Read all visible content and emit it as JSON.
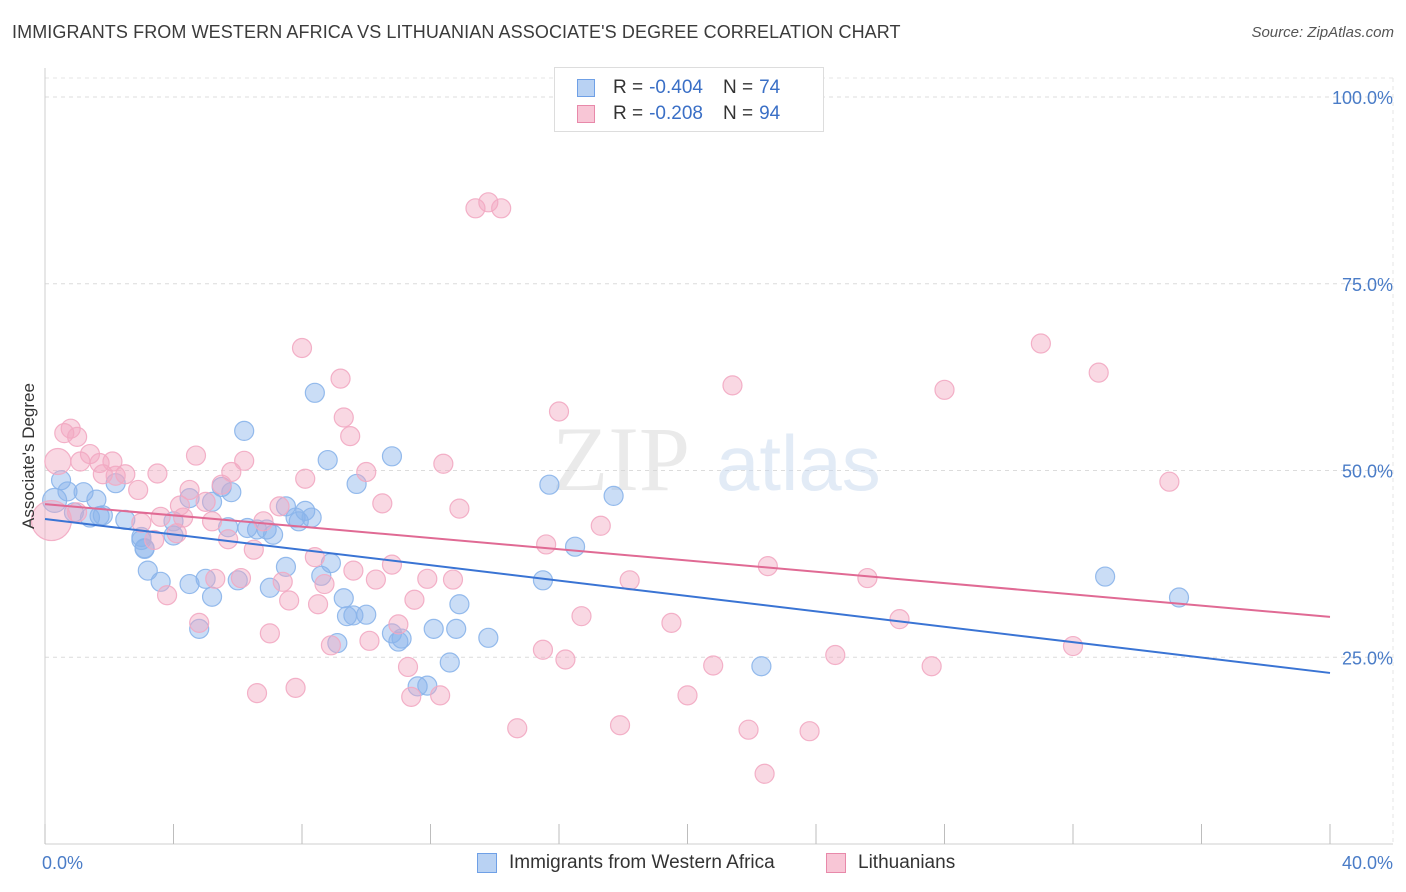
{
  "title": "IMMIGRANTS FROM WESTERN AFRICA VS LITHUANIAN ASSOCIATE'S DEGREE CORRELATION CHART",
  "source": "Source: ZipAtlas.com",
  "watermark": {
    "zip": "ZIP",
    "atlas": "atlas"
  },
  "legend": {
    "r_label": "R =",
    "n_label": "N =",
    "rows": [
      {
        "r": "-0.404",
        "n": "74",
        "color": "#6fa0e6",
        "fill": "#b9d2f3"
      },
      {
        "r": "-0.208",
        "n": "94",
        "color": "#e889aa",
        "fill": "#f8c6d6"
      }
    ]
  },
  "bottom_legend": {
    "items": [
      {
        "label": "Immigrants from Western Africa",
        "color": "#6fa0e6",
        "fill": "#b9d2f3"
      },
      {
        "label": "Lithuanians",
        "color": "#e889aa",
        "fill": "#f8c6d6"
      }
    ]
  },
  "chart_data": {
    "type": "scatter",
    "title": "IMMIGRANTS FROM WESTERN AFRICA VS LITHUANIAN ASSOCIATE'S DEGREE CORRELATION CHART",
    "xlabel": "",
    "ylabel": "Associate's Degree",
    "xlim": [
      0,
      40
    ],
    "ylim": [
      0,
      105
    ],
    "x_tick_labels": [
      "0.0%",
      "40.0%"
    ],
    "y_ticks": [
      25,
      50,
      75,
      100
    ],
    "y_tick_labels": [
      "25.0%",
      "50.0%",
      "75.0%",
      "100.0%"
    ],
    "grid": true,
    "legend_position": "top-center",
    "series": [
      {
        "name": "Immigrants from Western Africa",
        "color": "#3a74d4",
        "point_color": "#8ab4ea",
        "trend": {
          "x": [
            0,
            40
          ],
          "y": [
            43.5,
            22.9
          ]
        },
        "points": [
          [
            0.3,
            46
          ],
          [
            0.5,
            48.7
          ],
          [
            0.7,
            47.2
          ],
          [
            0.9,
            44.4
          ],
          [
            1.2,
            47.1
          ],
          [
            1.4,
            43.7
          ],
          [
            1.6,
            46.1
          ],
          [
            1.7,
            43.9
          ],
          [
            1.8,
            44
          ],
          [
            2.2,
            48.3
          ],
          [
            2.5,
            43.4
          ],
          [
            3.0,
            40.7
          ],
          [
            3.0,
            41.1
          ],
          [
            3.1,
            39.6
          ],
          [
            3.1,
            39.5
          ],
          [
            3.2,
            36.6
          ],
          [
            3.6,
            35.1
          ],
          [
            4.0,
            41.3
          ],
          [
            4.0,
            43.2
          ],
          [
            4.5,
            34.8
          ],
          [
            4.5,
            46.3
          ],
          [
            4.8,
            28.8
          ],
          [
            5.0,
            35.5
          ],
          [
            5.2,
            33.1
          ],
          [
            5.2,
            45.8
          ],
          [
            5.5,
            47.8
          ],
          [
            5.7,
            42.4
          ],
          [
            5.8,
            47.1
          ],
          [
            6.0,
            35.3
          ],
          [
            6.2,
            55.3
          ],
          [
            6.3,
            42.3
          ],
          [
            6.6,
            42.1
          ],
          [
            6.9,
            42.1
          ],
          [
            7.0,
            34.3
          ],
          [
            7.1,
            41.4
          ],
          [
            7.5,
            45.2
          ],
          [
            7.5,
            37.1
          ],
          [
            7.8,
            43.7
          ],
          [
            7.9,
            43.2
          ],
          [
            8.1,
            44.6
          ],
          [
            8.3,
            43.7
          ],
          [
            8.4,
            60.4
          ],
          [
            8.6,
            35.9
          ],
          [
            8.8,
            51.4
          ],
          [
            8.9,
            37.6
          ],
          [
            9.1,
            26.9
          ],
          [
            9.3,
            32.9
          ],
          [
            9.4,
            30.5
          ],
          [
            9.6,
            30.6
          ],
          [
            9.7,
            48.2
          ],
          [
            10.0,
            30.7
          ],
          [
            10.8,
            51.9
          ],
          [
            10.8,
            28.2
          ],
          [
            11.0,
            27.1
          ],
          [
            11.1,
            27.5
          ],
          [
            11.6,
            21.1
          ],
          [
            11.9,
            21.2
          ],
          [
            12.1,
            28.8
          ],
          [
            12.6,
            24.3
          ],
          [
            12.8,
            28.8
          ],
          [
            12.9,
            32.1
          ],
          [
            13.8,
            27.6
          ],
          [
            15.5,
            35.3
          ],
          [
            15.7,
            48.1
          ],
          [
            16.5,
            39.8
          ],
          [
            17.7,
            46.6
          ],
          [
            22.3,
            23.8
          ],
          [
            33.0,
            35.8
          ],
          [
            35.3,
            33.0
          ]
        ]
      },
      {
        "name": "Lithuanians",
        "color": "#e06a94",
        "point_color": "#f2a9c2",
        "trend": {
          "x": [
            0,
            40
          ],
          "y": [
            45.5,
            30.4
          ]
        },
        "points": [
          [
            0.2,
            43.3
          ],
          [
            0.4,
            51.2
          ],
          [
            0.6,
            55
          ],
          [
            0.8,
            55.6
          ],
          [
            1.0,
            54.5
          ],
          [
            1.1,
            51.2
          ],
          [
            1.4,
            52.2
          ],
          [
            1.7,
            51
          ],
          [
            1.8,
            49.5
          ],
          [
            2.1,
            51.2
          ],
          [
            2.2,
            49.3
          ],
          [
            2.5,
            49.5
          ],
          [
            2.9,
            47.4
          ],
          [
            3.0,
            43
          ],
          [
            3.4,
            40.7
          ],
          [
            3.5,
            49.6
          ],
          [
            3.6,
            43.8
          ],
          [
            3.8,
            33.3
          ],
          [
            4.1,
            41.6
          ],
          [
            4.2,
            45.3
          ],
          [
            4.3,
            43.7
          ],
          [
            4.5,
            47.4
          ],
          [
            4.7,
            52
          ],
          [
            4.8,
            29.6
          ],
          [
            5.0,
            45.8
          ],
          [
            5.2,
            43.2
          ],
          [
            5.3,
            35.5
          ],
          [
            5.5,
            48.1
          ],
          [
            5.7,
            40.8
          ],
          [
            5.8,
            49.8
          ],
          [
            6.1,
            35.6
          ],
          [
            6.2,
            51.3
          ],
          [
            6.5,
            39.4
          ],
          [
            6.6,
            20.2
          ],
          [
            6.8,
            43.2
          ],
          [
            7.0,
            28.2
          ],
          [
            7.3,
            45.2
          ],
          [
            7.4,
            35.1
          ],
          [
            7.6,
            32.6
          ],
          [
            7.8,
            20.9
          ],
          [
            8.0,
            66.4
          ],
          [
            8.1,
            48.9
          ],
          [
            8.4,
            38.4
          ],
          [
            8.5,
            32.1
          ],
          [
            8.7,
            34.8
          ],
          [
            8.9,
            26.6
          ],
          [
            9.2,
            62.3
          ],
          [
            9.3,
            57.1
          ],
          [
            9.5,
            54.6
          ],
          [
            9.6,
            36.6
          ],
          [
            10.0,
            49.8
          ],
          [
            10.1,
            27.2
          ],
          [
            10.3,
            35.4
          ],
          [
            10.5,
            45.6
          ],
          [
            10.8,
            37.4
          ],
          [
            11.0,
            29.4
          ],
          [
            11.3,
            23.7
          ],
          [
            11.4,
            19.7
          ],
          [
            11.5,
            32.7
          ],
          [
            11.9,
            35.5
          ],
          [
            12.3,
            19.9
          ],
          [
            12.4,
            50.9
          ],
          [
            12.7,
            35.4
          ],
          [
            12.9,
            44.9
          ],
          [
            13.4,
            85.1
          ],
          [
            13.8,
            85.9
          ],
          [
            14.2,
            85.1
          ],
          [
            14.7,
            15.5
          ],
          [
            15.5,
            26
          ],
          [
            15.6,
            40.1
          ],
          [
            16.0,
            57.9
          ],
          [
            16.2,
            24.7
          ],
          [
            16.7,
            30.5
          ],
          [
            17.3,
            42.6
          ],
          [
            17.9,
            15.9
          ],
          [
            18.2,
            35.3
          ],
          [
            19.5,
            29.6
          ],
          [
            20.0,
            19.9
          ],
          [
            20.8,
            23.9
          ],
          [
            21.4,
            61.4
          ],
          [
            21.9,
            15.3
          ],
          [
            22.4,
            9.4
          ],
          [
            22.5,
            37.2
          ],
          [
            23.8,
            15.1
          ],
          [
            24.6,
            25.3
          ],
          [
            25.6,
            35.6
          ],
          [
            26.6,
            30.1
          ],
          [
            27.6,
            23.8
          ],
          [
            28.0,
            60.8
          ],
          [
            31.0,
            67
          ],
          [
            32.0,
            26.5
          ],
          [
            32.8,
            63.1
          ],
          [
            35.0,
            48.5
          ],
          [
            1.0,
            44.4
          ]
        ]
      }
    ]
  }
}
